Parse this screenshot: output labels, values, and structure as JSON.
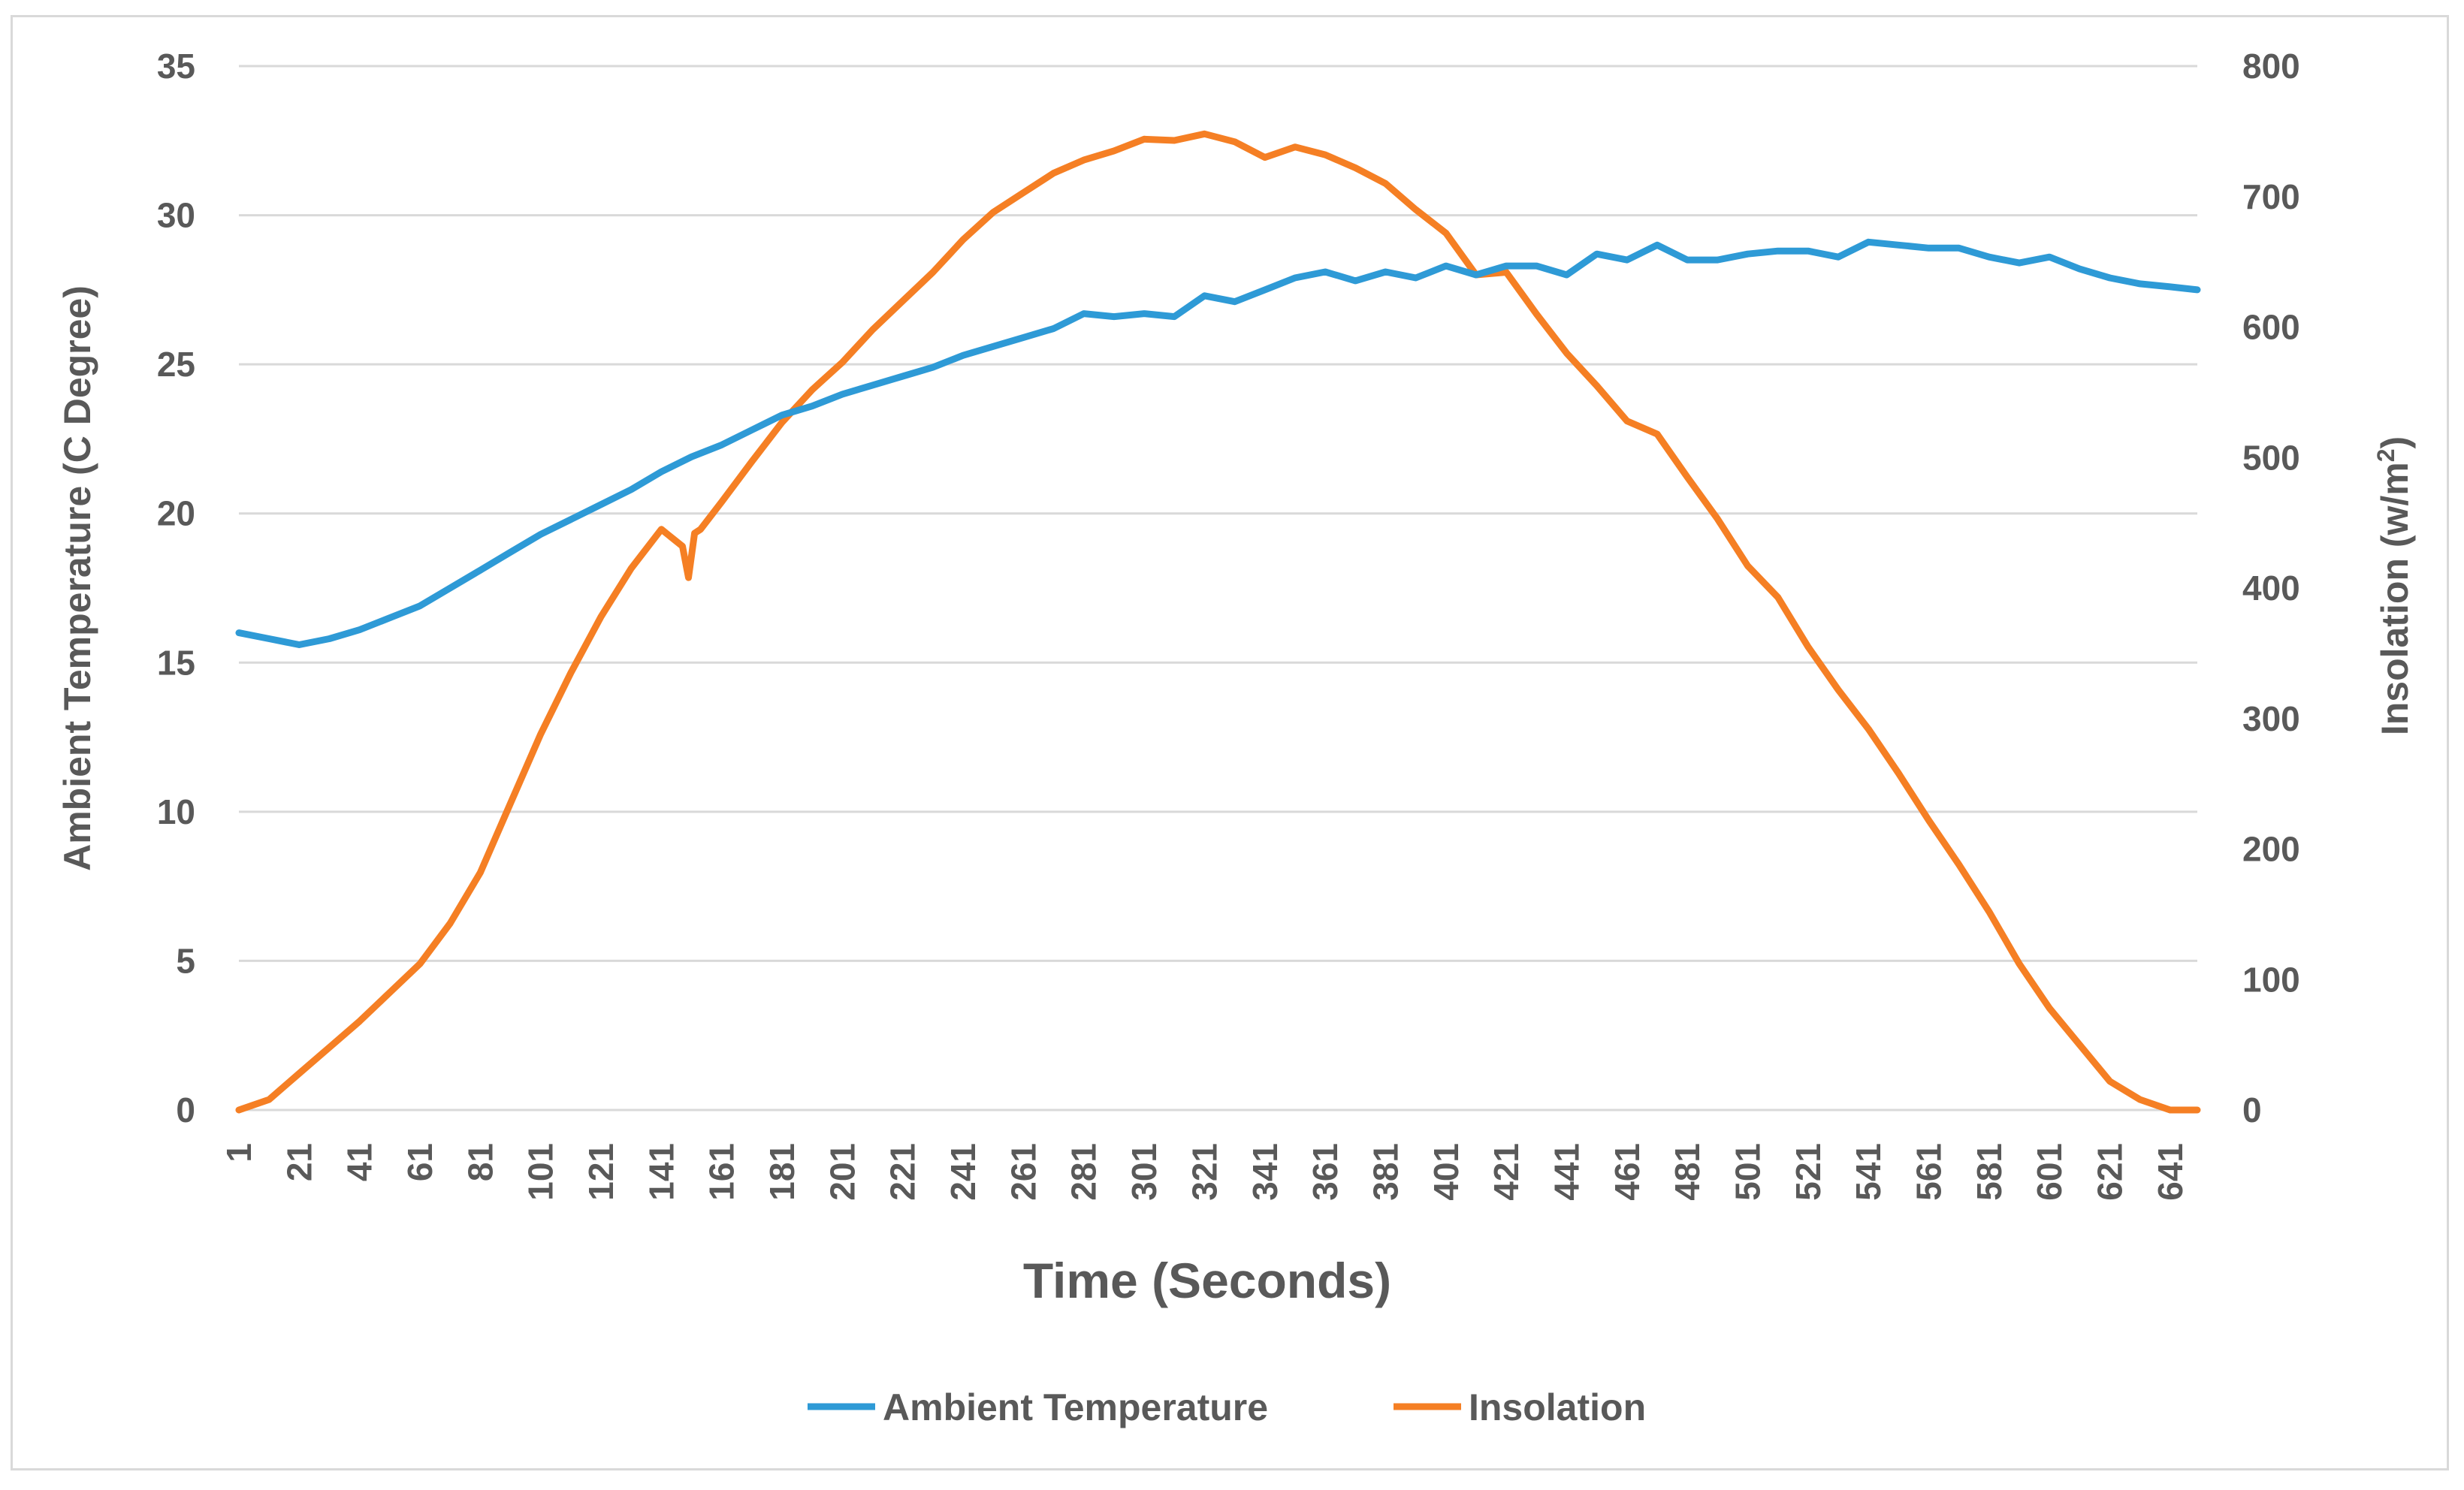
{
  "chart_data": {
    "type": "line",
    "title": "",
    "xlabel": "Time (Seconds)",
    "ylabel_left": "Ambient Temperature  (C Degree)",
    "ylabel_right_base": "Insolation (w/m",
    "ylabel_right_sup": "2",
    "ylabel_right_close": ")",
    "xlim": [
      1,
      650
    ],
    "ylim_left": [
      0,
      35
    ],
    "ylim_right": [
      0,
      800
    ],
    "left_ticks": [
      0,
      5,
      10,
      15,
      20,
      25,
      30,
      35
    ],
    "right_ticks": [
      0,
      100,
      200,
      300,
      400,
      500,
      600,
      700,
      800
    ],
    "x_ticks": [
      1,
      21,
      41,
      61,
      81,
      101,
      121,
      141,
      161,
      181,
      201,
      221,
      241,
      261,
      281,
      301,
      321,
      341,
      361,
      381,
      401,
      421,
      441,
      461,
      481,
      501,
      521,
      541,
      561,
      581,
      601,
      621,
      641
    ],
    "grid": true,
    "legend_position": "bottom",
    "series": [
      {
        "name": "Ambient Temperature",
        "axis": "left",
        "color": "#2e9ad6",
        "x": [
          1,
          11,
          21,
          31,
          41,
          51,
          61,
          71,
          81,
          91,
          101,
          111,
          121,
          131,
          141,
          151,
          161,
          171,
          181,
          191,
          201,
          211,
          221,
          231,
          241,
          251,
          261,
          271,
          281,
          291,
          301,
          311,
          321,
          331,
          341,
          351,
          361,
          371,
          381,
          391,
          401,
          411,
          421,
          431,
          441,
          451,
          461,
          471,
          481,
          491,
          501,
          511,
          521,
          531,
          541,
          551,
          561,
          571,
          581,
          591,
          601,
          611,
          621,
          631,
          641,
          650
        ],
        "values": [
          16.0,
          15.8,
          15.6,
          15.8,
          16.1,
          16.5,
          16.9,
          17.5,
          18.1,
          18.7,
          19.3,
          19.8,
          20.3,
          20.8,
          21.4,
          21.9,
          22.3,
          22.8,
          23.3,
          23.6,
          24.0,
          24.3,
          24.6,
          24.9,
          25.3,
          25.6,
          25.9,
          26.2,
          26.7,
          26.6,
          26.7,
          26.6,
          27.3,
          27.1,
          27.5,
          27.9,
          28.1,
          27.8,
          28.1,
          27.9,
          28.3,
          28.0,
          28.3,
          28.3,
          28.0,
          28.7,
          28.5,
          29.0,
          28.5,
          28.5,
          28.7,
          28.8,
          28.8,
          28.6,
          29.1,
          29.0,
          28.9,
          28.9,
          28.6,
          28.4,
          28.6,
          28.2,
          27.9,
          27.7,
          27.6,
          27.5
        ]
      },
      {
        "name": "Insolation",
        "axis": "right",
        "color": "#f57f24",
        "x": [
          1,
          11,
          21,
          31,
          41,
          51,
          61,
          71,
          81,
          91,
          101,
          111,
          121,
          131,
          141,
          148,
          150,
          152,
          154,
          161,
          171,
          181,
          191,
          201,
          211,
          221,
          231,
          241,
          251,
          261,
          271,
          281,
          291,
          301,
          311,
          321,
          331,
          341,
          351,
          361,
          371,
          381,
          391,
          401,
          411,
          421,
          431,
          441,
          451,
          461,
          471,
          481,
          491,
          501,
          511,
          521,
          531,
          541,
          551,
          561,
          571,
          581,
          591,
          601,
          611,
          621,
          631,
          641,
          650
        ],
        "values": [
          0,
          8,
          28,
          48,
          68,
          90,
          112,
          143,
          182,
          235,
          288,
          335,
          378,
          415,
          445,
          432,
          408,
          442,
          445,
          466,
          497,
          527,
          552,
          573,
          598,
          620,
          642,
          667,
          688,
          703,
          718,
          728,
          735,
          744,
          743,
          748,
          742,
          730,
          738,
          732,
          722,
          710,
          690,
          672,
          640,
          642,
          610,
          580,
          555,
          528,
          518,
          485,
          453,
          417,
          393,
          355,
          322,
          292,
          258,
          222,
          188,
          152,
          112,
          78,
          50,
          22,
          8,
          0,
          0
        ]
      }
    ]
  }
}
